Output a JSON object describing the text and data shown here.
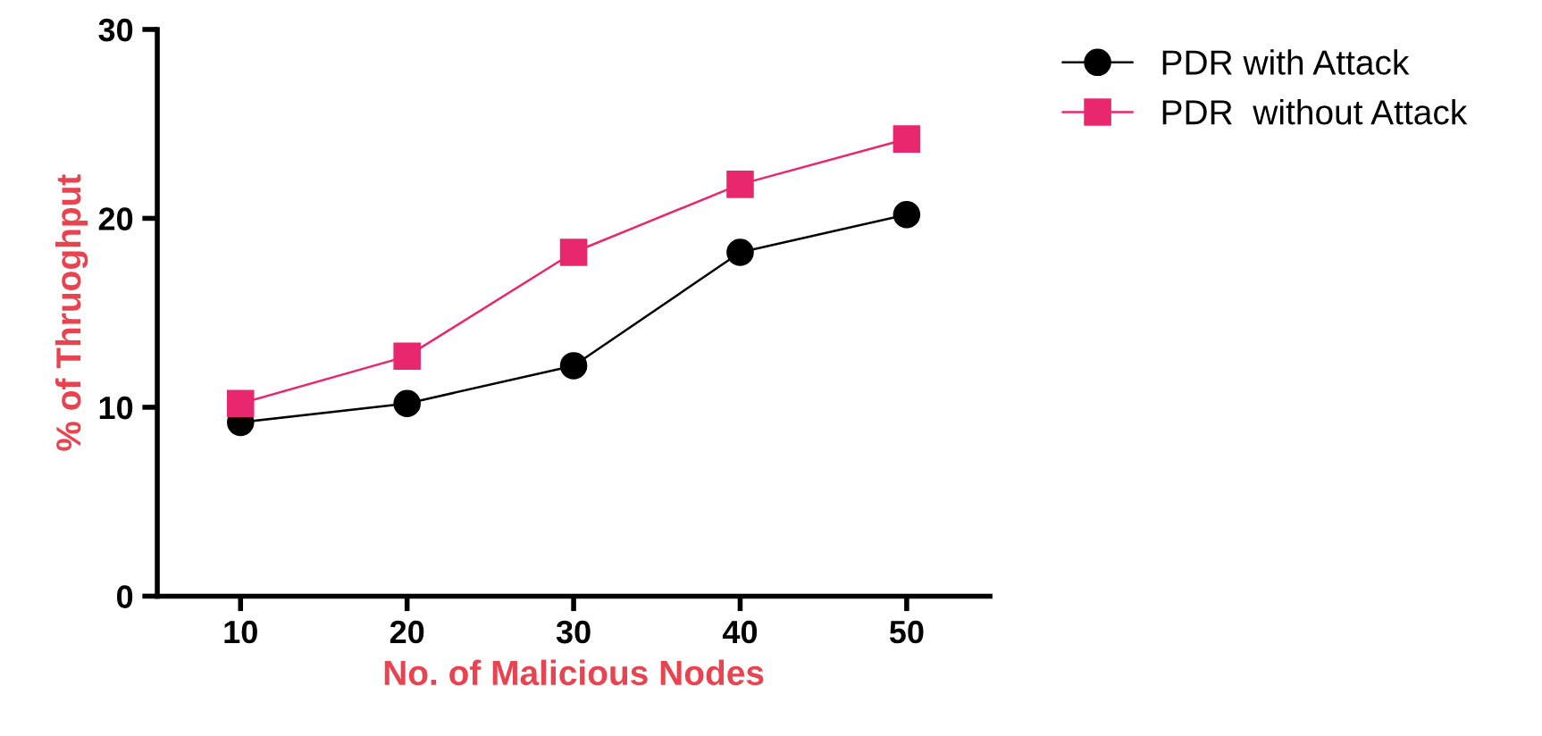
{
  "chart_data": {
    "type": "line",
    "xlabel": "No. of Malicious Nodes",
    "ylabel": "% of Thruoghput",
    "x": [
      10,
      20,
      30,
      40,
      50
    ],
    "series": [
      {
        "name": "PDR with Attack",
        "color": "#000000",
        "marker": "circle",
        "values": [
          9.2,
          10.2,
          12.2,
          18.2,
          20.2
        ]
      },
      {
        "name": "PDR  without Attack",
        "color": "#e8276f",
        "marker": "square",
        "values": [
          10.2,
          12.7,
          18.2,
          21.8,
          24.2
        ]
      }
    ],
    "xlim": [
      5,
      55
    ],
    "xticks": [
      10,
      20,
      30,
      40,
      50
    ],
    "ylim": [
      0,
      30
    ],
    "yticks": [
      0,
      10,
      20,
      30
    ],
    "grid": false,
    "legend": "top right"
  }
}
